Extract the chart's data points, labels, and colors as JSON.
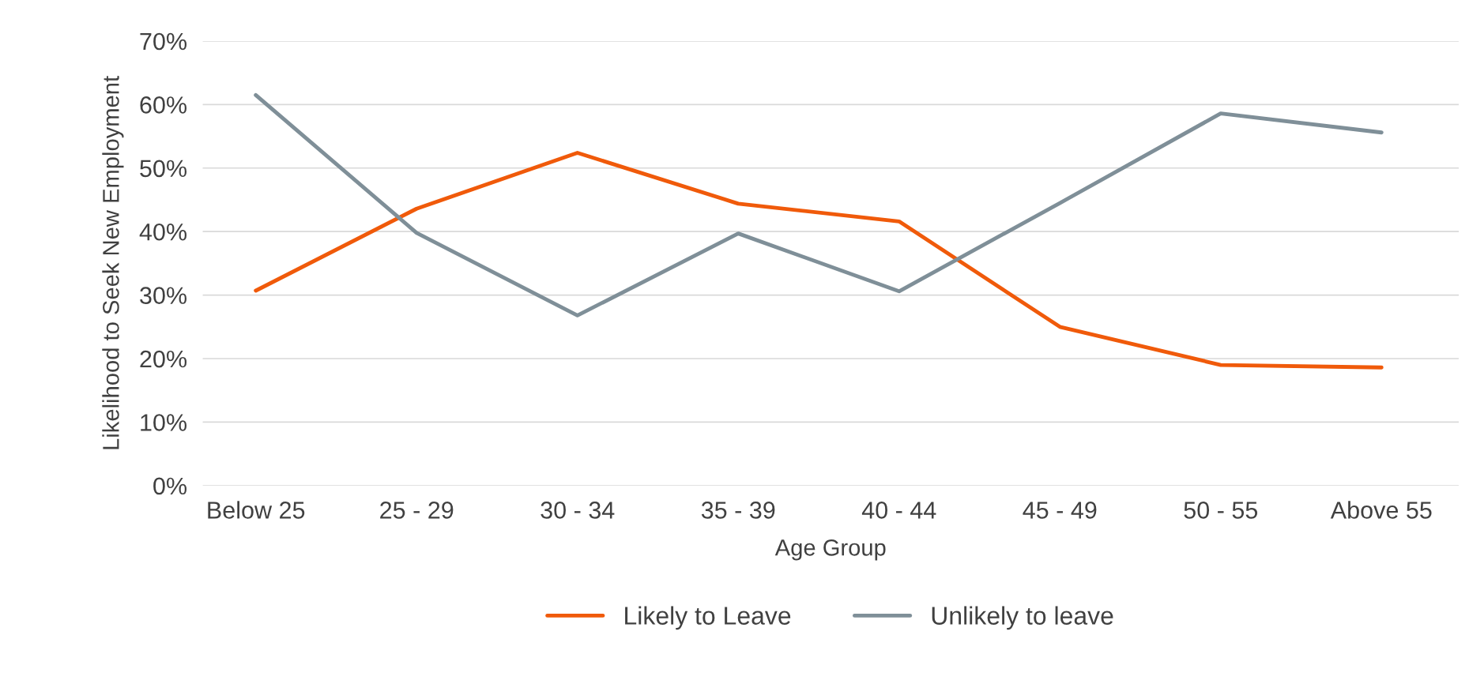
{
  "chart_data": {
    "type": "line",
    "xlabel": "Age Group",
    "ylabel": "Likelihood to Seek New Employment",
    "categories": [
      "Below 25",
      "25 - 29",
      "30 - 34",
      "35 - 39",
      "40 - 44",
      "45 - 49",
      "50 - 55",
      "Above 55"
    ],
    "series": [
      {
        "name": "Likely to Leave",
        "color": "#f05a0a",
        "values": [
          30.7,
          43.6,
          52.4,
          44.4,
          41.6,
          25.0,
          19.0,
          18.6
        ]
      },
      {
        "name": "Unlikely to leave",
        "color": "#7f8f98",
        "values": [
          61.5,
          39.8,
          26.8,
          39.7,
          30.6,
          44.5,
          58.6,
          55.6
        ]
      }
    ],
    "ylim": [
      0,
      70
    ],
    "yticks": [
      {
        "value": 0,
        "label": "0%"
      },
      {
        "value": 10,
        "label": "10%"
      },
      {
        "value": 20,
        "label": "20%"
      },
      {
        "value": 30,
        "label": "30%"
      },
      {
        "value": 40,
        "label": "40%"
      },
      {
        "value": 50,
        "label": "50%"
      },
      {
        "value": 60,
        "label": "60%"
      },
      {
        "value": 70,
        "label": "70%"
      }
    ],
    "grid": "y",
    "legend": "bottom",
    "marker": "none",
    "line_style": "solid"
  }
}
